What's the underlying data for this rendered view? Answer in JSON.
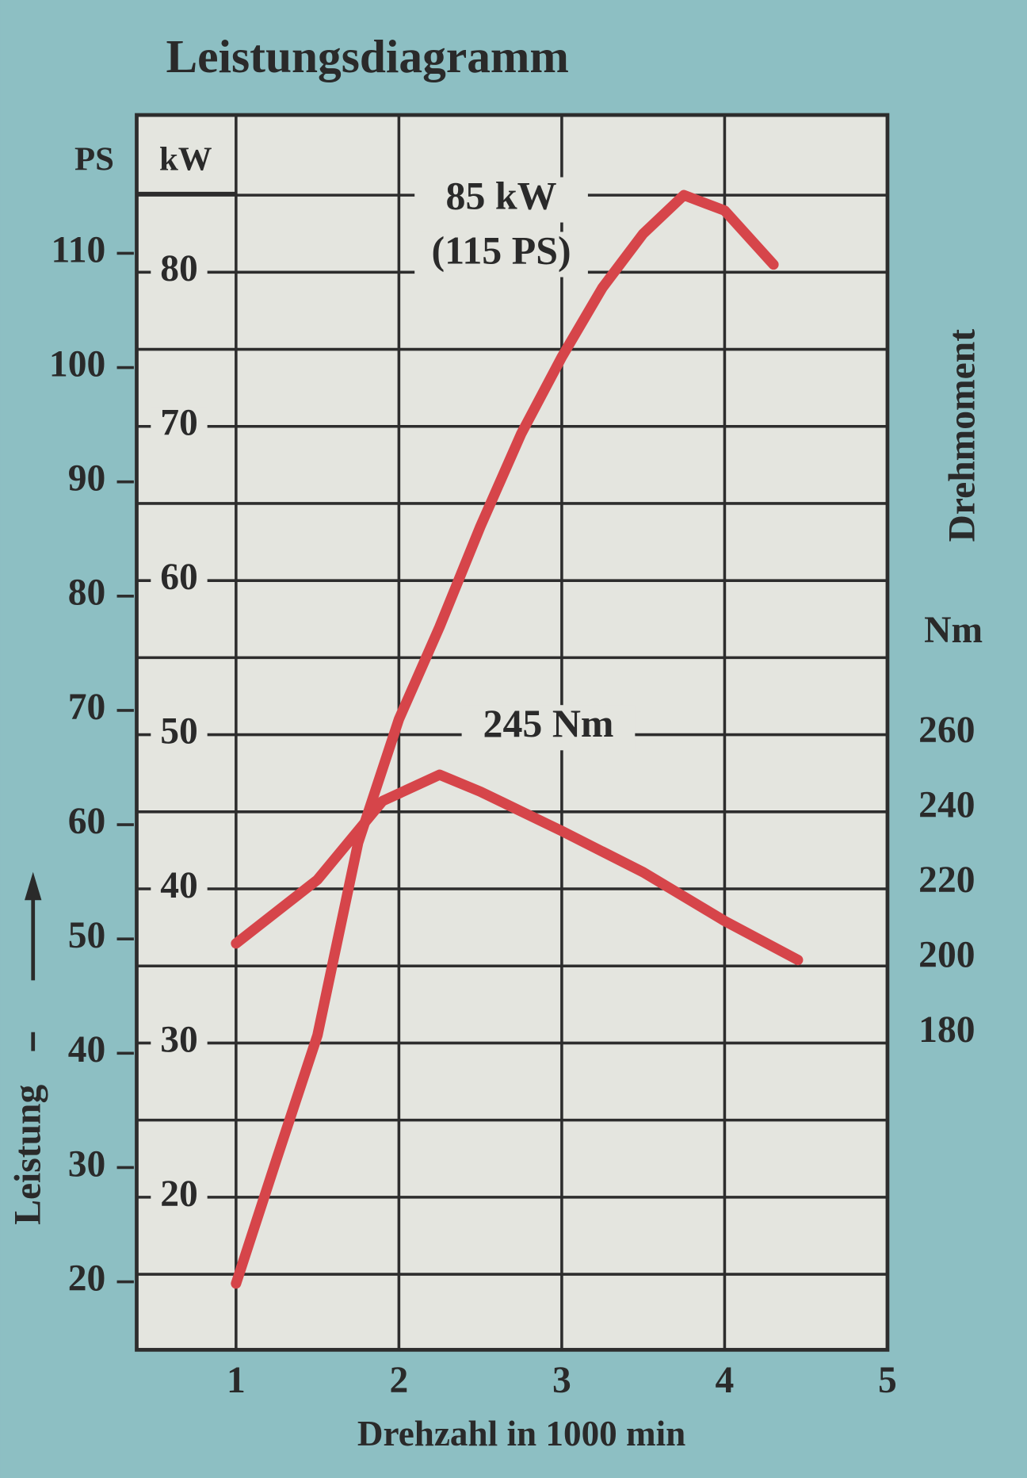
{
  "chart_data": {
    "type": "line",
    "title": "Leistungsdiagramm",
    "x_label": "Drehzahl in 1000 min",
    "y_label": "Leistung",
    "y_unit": "kW",
    "ps_unit": "PS",
    "y2_label": "Drehmoment",
    "y2_unit": "Nm",
    "xlim": [
      0.39,
      5
    ],
    "xticks": [
      1,
      2,
      3,
      4,
      5
    ],
    "ylim": [
      10.1,
      90.2
    ],
    "yticks": [
      20,
      30,
      40,
      50,
      60,
      70,
      80
    ],
    "ygrid": [
      15,
      20,
      25,
      30,
      35,
      40,
      45,
      50,
      55,
      60,
      65,
      70,
      75,
      80,
      85
    ],
    "ps_lim": [
      14.05,
      122.1
    ],
    "ps_ticks": [
      20,
      30,
      40,
      50,
      60,
      70,
      80,
      90,
      100,
      110
    ],
    "y2lim": [
      95.6,
      425
    ],
    "y2ticks": [
      180,
      200,
      220,
      240,
      260
    ],
    "grid": true,
    "series": [
      {
        "color": "#d6454a",
        "x": [
          1.0,
          1.25,
          1.5,
          1.75,
          2.0,
          2.25,
          2.5,
          2.75,
          3.0,
          3.25,
          3.5,
          3.75,
          4.0,
          4.3
        ],
        "values": [
          14.4,
          22.5,
          30.5,
          43,
          51,
          57,
          63.5,
          69.5,
          74.5,
          79,
          82.5,
          85,
          84,
          80.5
        ]
      },
      {
        "color": "#d6454a",
        "axis": "y2",
        "x": [
          1.0,
          1.5,
          1.9,
          2.25,
          2.5,
          3.0,
          3.5,
          4.0,
          4.45
        ],
        "values": [
          204,
          221,
          242,
          249,
          244.5,
          234,
          223,
          210,
          199.6
        ]
      }
    ],
    "annotations": [
      "85 kW",
      "(115 PS)",
      "245 Nm"
    ]
  }
}
